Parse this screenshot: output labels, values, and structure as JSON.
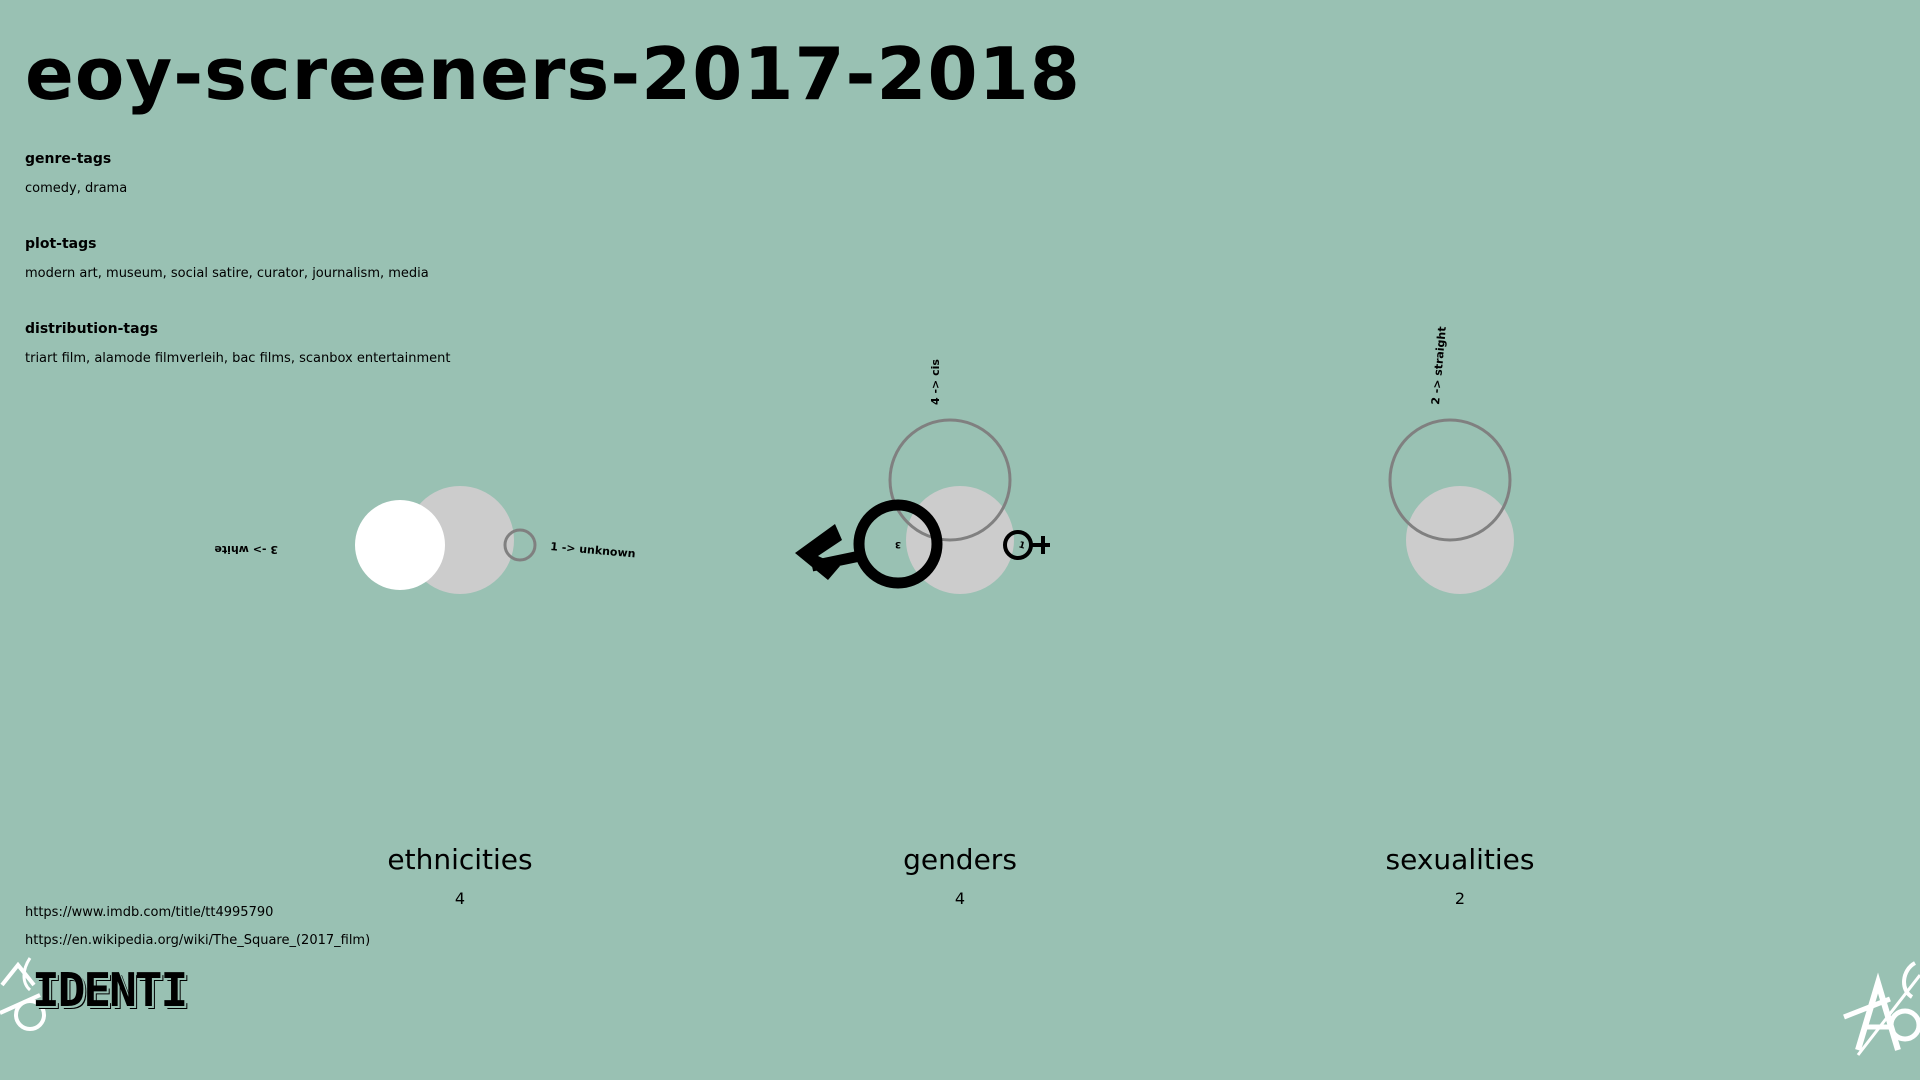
{
  "title": "eoy-screeners-2017-2018",
  "tags": {
    "genre": {
      "heading": "genre-tags",
      "values": "comedy, drama"
    },
    "plot": {
      "heading": "plot-tags",
      "values": "modern art, museum, social satire, curator, journalism, media"
    },
    "distribution": {
      "heading": "distribution-tags",
      "values": "triart film, alamode filmverleih, bac films, scanbox entertainment"
    }
  },
  "chart_data": [
    {
      "type": "other",
      "name": "ethnicities",
      "total": "4",
      "series": [
        {
          "label": "3 -> white",
          "value": 3
        },
        {
          "label": "1 -> unknown",
          "value": 1
        }
      ]
    },
    {
      "type": "other",
      "name": "genders",
      "total": "4",
      "series": [
        {
          "label": "4 -> cis",
          "value": 4
        },
        {
          "label": "3",
          "value": 3,
          "icon": "male-symbol-icon"
        },
        {
          "label": "1",
          "value": 1,
          "icon": "female-symbol-icon"
        }
      ]
    },
    {
      "type": "other",
      "name": "sexualities",
      "total": "2",
      "series": [
        {
          "label": "2 -> straight",
          "value": 2
        }
      ]
    }
  ],
  "links": {
    "imdb": "https://www.imdb.com/title/tt4995790",
    "wikipedia": "https://en.wikipedia.org/wiki/The_Square_(2017_film)"
  },
  "logo": {
    "left_text": "IDENTI"
  },
  "colors": {
    "background": "#99c1b3",
    "base_circle": "#cccccc",
    "highlight_circle": "#ffffff",
    "outline_circle": "#808080",
    "ink": "#000000"
  }
}
